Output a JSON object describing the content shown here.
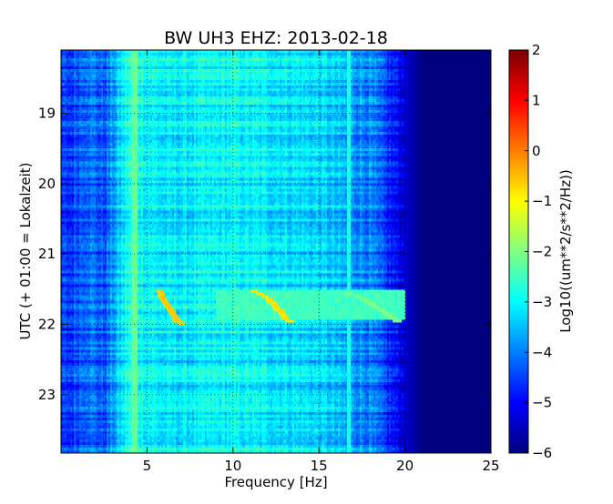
{
  "chart_data": {
    "type": "heatmap",
    "title": "BW UH3 EHZ: 2013-02-18",
    "xlabel": "Frequency [Hz]",
    "ylabel": "UTC (+ 01:00 = Lokalzeit)",
    "xlim": [
      0,
      25
    ],
    "ylim": [
      18.1,
      23.83
    ],
    "y_inverted": true,
    "x_ticks": [
      5,
      10,
      15,
      20,
      25
    ],
    "y_ticks": [
      19,
      20,
      21,
      22,
      23
    ],
    "grid": true,
    "colormap": "jet",
    "colorbar": {
      "label": "Log10((um**2/s**2/Hz))",
      "range": [
        -6,
        2
      ],
      "ticks": [
        2,
        1,
        0,
        -1,
        -2,
        -3,
        -4,
        -5,
        -6
      ]
    },
    "background_level_by_frequency": [
      {
        "x": 0.5,
        "y": -4.6
      },
      {
        "x": 1.5,
        "y": -4.0
      },
      {
        "x": 2.5,
        "y": -4.4
      },
      {
        "x": 4.0,
        "y": -2.7
      },
      {
        "x": 6.0,
        "y": -3.2
      },
      {
        "x": 10.0,
        "y": -3.0
      },
      {
        "x": 15.0,
        "y": -3.3
      },
      {
        "x": 18.0,
        "y": -4.0
      },
      {
        "x": 19.5,
        "y": -5.0
      },
      {
        "x": 21.0,
        "y": -6.0
      },
      {
        "x": 25.0,
        "y": -6.0
      }
    ],
    "event_band": {
      "freq": [
        9,
        20
      ],
      "utc": [
        21.5,
        21.95
      ],
      "level": -2.5
    },
    "sweeps": [
      {
        "points": [
          [
            5.7,
            21.52
          ],
          [
            6.0,
            21.68
          ],
          [
            6.4,
            21.82
          ],
          [
            6.8,
            21.98
          ],
          [
            7.5,
            22.02
          ]
        ],
        "level": -0.6
      },
      {
        "points": [
          [
            11.2,
            21.52
          ],
          [
            12.0,
            21.62
          ],
          [
            12.6,
            21.78
          ],
          [
            13.2,
            21.95
          ],
          [
            14.0,
            21.97
          ]
        ],
        "level": -0.8
      },
      {
        "points": [
          [
            16.5,
            21.55
          ],
          [
            17.5,
            21.62
          ],
          [
            18.5,
            21.78
          ],
          [
            19.5,
            21.95
          ],
          [
            20.0,
            21.98
          ]
        ],
        "level": -2.0
      }
    ],
    "vertical_lines": [
      {
        "x": 4.3,
        "level": -2.2
      },
      {
        "x": 16.7,
        "level": -2.8
      }
    ]
  },
  "colors": {
    "axes_edge": "#000000",
    "grid": "#000000"
  }
}
